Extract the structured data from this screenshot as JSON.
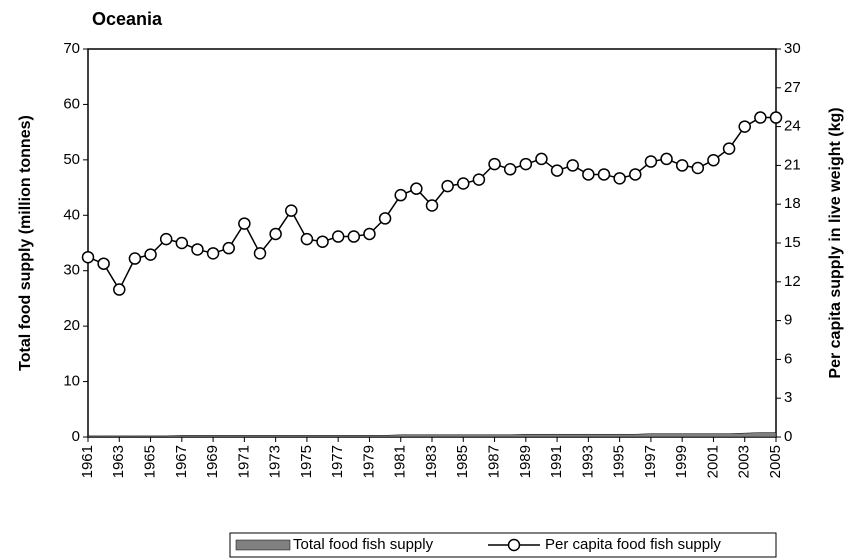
{
  "chart_data": {
    "type": "line",
    "title": "Oceania",
    "y_label": "Total food supply (million tonnes)",
    "y2_label": "Per capita supply in live weight (kg)",
    "x": [
      1961,
      1962,
      1963,
      1964,
      1965,
      1966,
      1967,
      1968,
      1969,
      1970,
      1971,
      1972,
      1973,
      1974,
      1975,
      1976,
      1977,
      1978,
      1979,
      1980,
      1981,
      1982,
      1983,
      1984,
      1985,
      1986,
      1987,
      1988,
      1989,
      1990,
      1991,
      1992,
      1993,
      1994,
      1995,
      1996,
      1997,
      1998,
      1999,
      2000,
      2001,
      2002,
      2003,
      2004,
      2005
    ],
    "xlim": [
      1961,
      2005
    ],
    "xticks": [
      1961,
      1963,
      1965,
      1967,
      1969,
      1971,
      1973,
      1975,
      1977,
      1979,
      1981,
      1983,
      1985,
      1987,
      1989,
      1991,
      1993,
      1995,
      1997,
      1999,
      2001,
      2003,
      2005
    ],
    "ylim": [
      0,
      70
    ],
    "yticks": [
      0,
      10,
      20,
      30,
      40,
      50,
      60,
      70
    ],
    "y2lim": [
      0,
      30
    ],
    "y2ticks": [
      0,
      3,
      6,
      9,
      12,
      15,
      18,
      21,
      24,
      27,
      30
    ],
    "series": [
      {
        "name": "Total food fish supply",
        "kind": "area",
        "color": "#808080",
        "axis": "y",
        "values": [
          0.2,
          0.2,
          0.2,
          0.2,
          0.2,
          0.2,
          0.3,
          0.3,
          0.3,
          0.3,
          0.3,
          0.3,
          0.3,
          0.3,
          0.3,
          0.3,
          0.3,
          0.3,
          0.3,
          0.3,
          0.4,
          0.4,
          0.4,
          0.4,
          0.4,
          0.4,
          0.4,
          0.4,
          0.5,
          0.5,
          0.5,
          0.5,
          0.5,
          0.5,
          0.5,
          0.5,
          0.6,
          0.6,
          0.6,
          0.6,
          0.6,
          0.6,
          0.7,
          0.8,
          0.8
        ]
      },
      {
        "name": "Per capita food fish supply",
        "kind": "line",
        "color": "#000000",
        "axis": "y2",
        "values": [
          13.9,
          13.4,
          11.4,
          13.8,
          14.1,
          15.3,
          15.0,
          14.5,
          14.2,
          14.6,
          16.5,
          14.2,
          15.7,
          17.5,
          15.3,
          15.1,
          15.5,
          15.5,
          15.7,
          16.9,
          18.7,
          19.2,
          17.9,
          19.4,
          19.6,
          19.9,
          21.1,
          20.7,
          21.1,
          21.5,
          20.6,
          21.0,
          20.3,
          20.3,
          20.0,
          20.3,
          21.3,
          21.5,
          21.0,
          20.8,
          21.4,
          22.3,
          24.0,
          24.7,
          24.7
        ]
      }
    ]
  }
}
